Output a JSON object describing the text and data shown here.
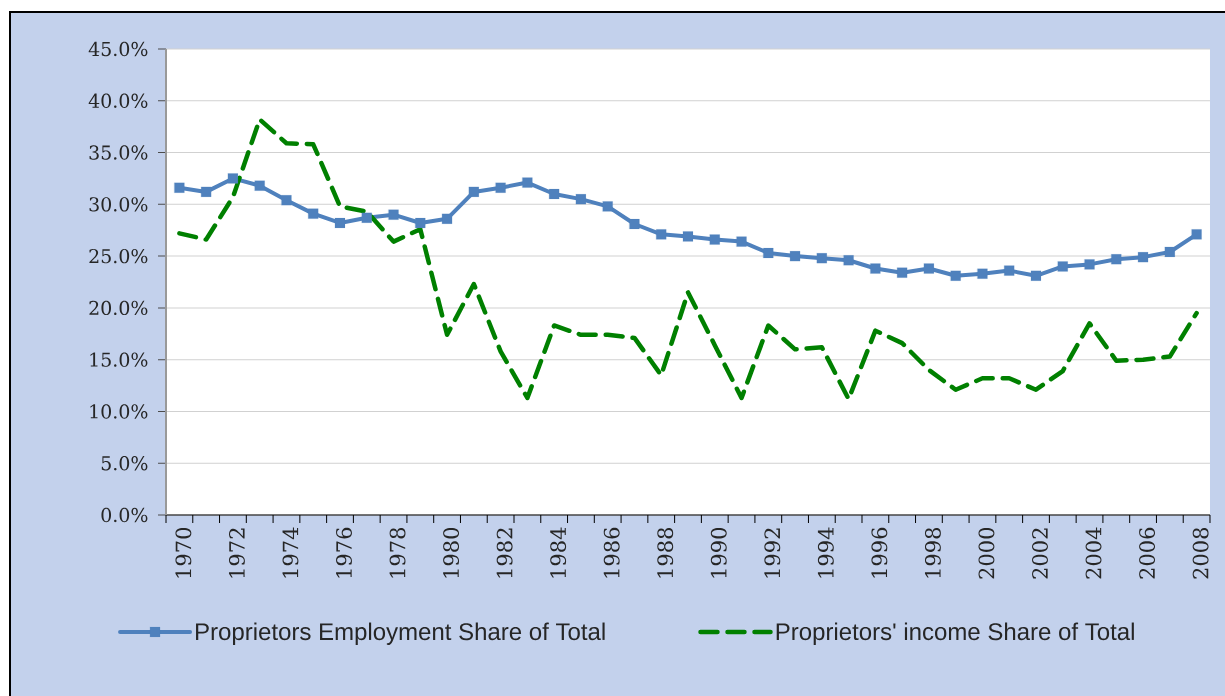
{
  "chart_data": {
    "type": "line",
    "categories": [
      "1970",
      null,
      "1972",
      null,
      "1974",
      null,
      "1976",
      null,
      "1978",
      null,
      "1980",
      null,
      "1982",
      null,
      "1984",
      null,
      "1986",
      null,
      "1988",
      null,
      "1990",
      null,
      "1992",
      null,
      "1994",
      null,
      "1996",
      null,
      "1998",
      null,
      "2000",
      null,
      "2002",
      null,
      "2004",
      null,
      "2006",
      null,
      "2008"
    ],
    "series": [
      {
        "name": "Proprietors Employment Share of Total",
        "color": "#4f81bd",
        "marker": "square",
        "line_style": "solid",
        "values": [
          31.6,
          31.2,
          32.5,
          31.8,
          30.4,
          29.1,
          28.2,
          28.7,
          29.0,
          28.2,
          28.6,
          31.2,
          31.6,
          32.1,
          31.0,
          30.5,
          29.8,
          28.1,
          27.1,
          26.9,
          26.6,
          26.4,
          25.3,
          25.0,
          24.8,
          24.6,
          23.8,
          23.4,
          23.8,
          23.1,
          23.3,
          23.6,
          23.1,
          24.0,
          24.2,
          24.7,
          24.9,
          25.4,
          27.1
        ]
      },
      {
        "name": "Proprietors' income Share of Total",
        "color": "#008000",
        "marker": "none",
        "line_style": "dashed",
        "values": [
          27.2,
          26.6,
          30.7,
          38.2,
          35.9,
          35.8,
          29.8,
          29.3,
          26.4,
          27.6,
          17.4,
          22.3,
          15.8,
          11.3,
          18.3,
          17.4,
          17.4,
          17.1,
          13.5,
          21.5,
          16.4,
          11.3,
          18.3,
          16.0,
          16.2,
          11.2,
          17.8,
          16.6,
          14.0,
          12.1,
          13.2,
          13.2,
          12.1,
          13.9,
          18.5,
          14.9,
          15.0,
          15.3,
          19.5
        ]
      }
    ],
    "ylim": [
      0,
      45
    ],
    "yticks": [
      {
        "value": 0,
        "label": "0.0%"
      },
      {
        "value": 5,
        "label": "5.0%"
      },
      {
        "value": 10,
        "label": "10.0%"
      },
      {
        "value": 15,
        "label": "15.0%"
      },
      {
        "value": 20,
        "label": "20.0%"
      },
      {
        "value": 25,
        "label": "25.0%"
      },
      {
        "value": 30,
        "label": "30.0%"
      },
      {
        "value": 35,
        "label": "35.0%"
      },
      {
        "value": 40,
        "label": "40.0%"
      },
      {
        "value": 45,
        "label": "45.0%"
      }
    ],
    "grid": "y",
    "legend": "bottom"
  }
}
